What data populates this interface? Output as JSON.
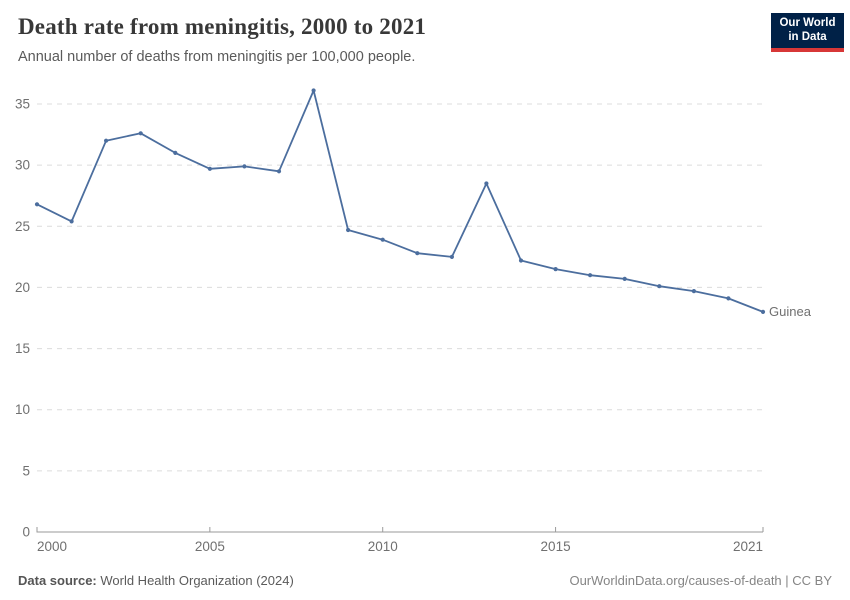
{
  "header": {
    "title": "Death rate from meningitis, 2000 to 2021",
    "subtitle": "Annual number of deaths from meningitis per 100,000 people.",
    "logo": {
      "line1": "Our World",
      "line2": "in Data",
      "bg_color": "#002147",
      "bar_color": "#d73737"
    }
  },
  "chart_data": {
    "type": "line",
    "title": "Death rate from meningitis, 2000 to 2021",
    "xlabel": "",
    "ylabel": "Annual number of deaths from meningitis per 100,000 people",
    "x": [
      2000,
      2001,
      2002,
      2003,
      2004,
      2005,
      2006,
      2007,
      2008,
      2009,
      2010,
      2011,
      2012,
      2013,
      2014,
      2015,
      2016,
      2017,
      2018,
      2019,
      2020,
      2021
    ],
    "series": [
      {
        "name": "Guinea",
        "color": "#4C6E9E",
        "values": [
          26.8,
          25.4,
          32.0,
          32.6,
          31.0,
          29.7,
          29.9,
          29.5,
          36.1,
          24.7,
          23.9,
          22.8,
          22.5,
          28.5,
          22.2,
          21.5,
          21.0,
          20.7,
          20.1,
          19.7,
          19.1,
          18.0
        ]
      }
    ],
    "ylim": [
      0,
      35
    ],
    "yticks": [
      0,
      5,
      10,
      15,
      20,
      25,
      30,
      35
    ],
    "xticks": [
      2000,
      2005,
      2010,
      2015,
      2021
    ],
    "grid": "horizontal-dashed",
    "gridline_color": "#dcdcdc",
    "axis_color": "#9a9a9a",
    "tick_label_color": "#707070",
    "legend_position": "line-end-label",
    "markers": true
  },
  "footer": {
    "source_label": "Data source:",
    "source_value": " World Health Organization (2024)",
    "credit": "OurWorldinData.org/causes-of-death | CC BY"
  }
}
